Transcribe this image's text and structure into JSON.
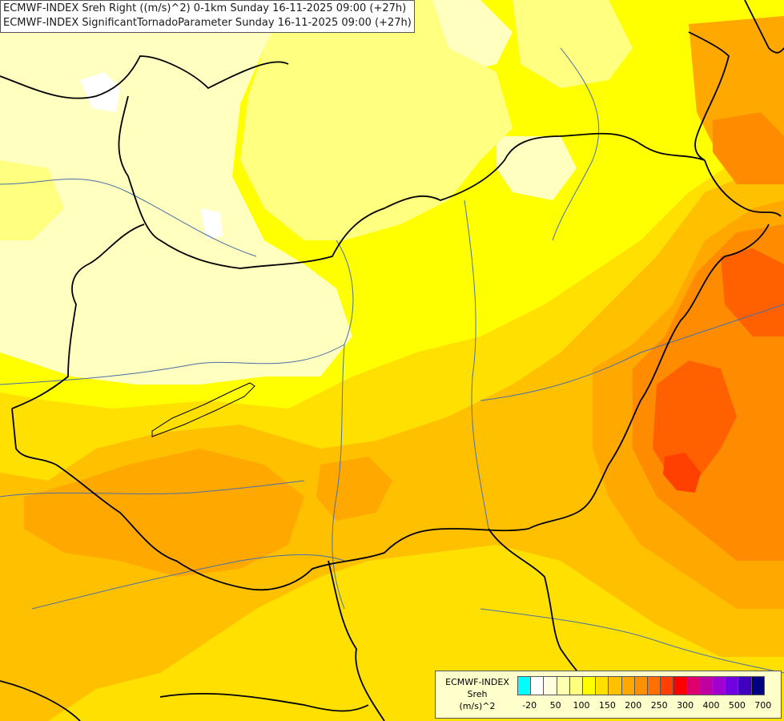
{
  "title": {
    "line1": "ECMWF-INDEX Sreh Right ((m/s)^2) 0-1km Sunday 16-11-2025 09:00 (+27h)",
    "line2": "ECMWF-INDEX SignificantTornadoParameter Sunday 16-11-2025 09:00 (+27h)"
  },
  "legend": {
    "title_line1": "ECMWF-INDEX",
    "title_line2": "Sreh",
    "title_line3": "(m/s)^2",
    "tick_labels": [
      "-20",
      "50",
      "100",
      "150",
      "200",
      "250",
      "300",
      "400",
      "500",
      "700"
    ],
    "colors": [
      "#00ffff",
      "#ffffff",
      "#ffffe0",
      "#ffffb0",
      "#ffff80",
      "#ffff00",
      "#ffe000",
      "#ffc000",
      "#ffa800",
      "#ff9000",
      "#ff7000",
      "#ff4000",
      "#ff0000",
      "#e0006c",
      "#c000a0",
      "#a000d0",
      "#7000e0",
      "#4000c0",
      "#000080"
    ]
  },
  "map_colors": {
    "pale": "#ffffc0",
    "light": "#ffff80",
    "yellow": "#ffff00",
    "gold": "#ffe000",
    "amber": "#ffc000",
    "orange": "#ffa800",
    "dark_orange": "#ff8c00",
    "red_orange": "#ff6000",
    "red": "#ff4000",
    "water": "#ffffff",
    "border_line": "#000000",
    "river_line": "#4a6fa5"
  }
}
